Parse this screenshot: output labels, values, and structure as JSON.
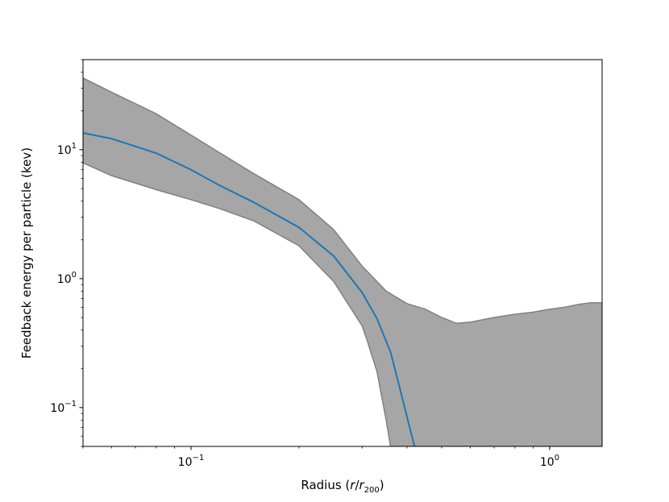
{
  "chart_data": {
    "type": "area",
    "title": "",
    "xlabel": {
      "pre": "Radius (",
      "r": "r",
      "slash": "/",
      "r2": "r",
      "sub": "200",
      "post": ")"
    },
    "ylabel": "Feedback energy per particle (kev)",
    "xscale": "log",
    "yscale": "log",
    "xlim": [
      0.05,
      1.4
    ],
    "ylim": [
      0.05,
      50
    ],
    "grid": false,
    "legend": "none",
    "x_ticks": [
      {
        "value": 0.1,
        "base": "10",
        "exp": "−1"
      },
      {
        "value": 1,
        "base": "10",
        "exp": "0"
      }
    ],
    "y_ticks": [
      {
        "value": 0.1,
        "base": "10",
        "exp": "−1"
      },
      {
        "value": 1,
        "base": "10",
        "exp": "0"
      },
      {
        "value": 10,
        "base": "10",
        "exp": "1"
      }
    ],
    "series": [
      {
        "kind": "line",
        "color": "#1f77b4",
        "x": [
          0.05,
          0.06,
          0.08,
          0.1,
          0.12,
          0.15,
          0.2,
          0.25,
          0.3,
          0.33,
          0.36,
          0.38,
          0.4,
          0.42
        ],
        "y": [
          13.5,
          12.2,
          9.4,
          7.0,
          5.3,
          3.9,
          2.5,
          1.5,
          0.78,
          0.49,
          0.27,
          0.15,
          0.085,
          0.05
        ]
      },
      {
        "kind": "band",
        "color": "#a6a6a6",
        "edge_color": "#808080",
        "x": [
          0.05,
          0.06,
          0.08,
          0.1,
          0.12,
          0.15,
          0.2,
          0.25,
          0.3,
          0.35,
          0.4,
          0.45,
          0.5,
          0.55,
          0.6,
          0.7,
          0.8,
          0.9,
          1.0,
          1.1,
          1.2,
          1.3,
          1.4
        ],
        "upper": [
          36,
          28,
          19,
          13,
          9.5,
          6.5,
          4.1,
          2.4,
          1.25,
          0.8,
          0.64,
          0.58,
          0.5,
          0.45,
          0.46,
          0.5,
          0.53,
          0.55,
          0.58,
          0.6,
          0.63,
          0.65,
          0.65
        ],
        "lower": [
          7.9,
          6.3,
          4.9,
          4.1,
          3.5,
          2.8,
          1.8,
          0.95,
          0.43,
          0.1,
          0.05,
          0.05,
          0.05,
          0.05,
          0.05,
          0.05,
          0.05,
          0.05,
          0.05,
          0.05,
          0.05,
          0.05,
          0.05
        ],
        "lower_drop": {
          "x": [
            0.31,
            0.33,
            0.35,
            0.36
          ],
          "y": [
            0.33,
            0.19,
            0.08,
            0.05
          ]
        }
      }
    ]
  }
}
